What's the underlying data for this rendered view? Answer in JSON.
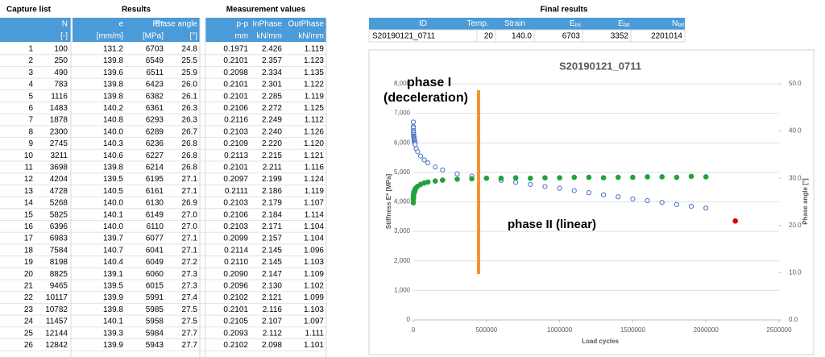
{
  "table": {
    "groups": [
      "Capture list",
      "Results",
      "Measurement values"
    ],
    "columns": [
      {
        "name": "N",
        "unit": "[-]"
      },
      {
        "name": "e",
        "unit": "[mm/m]"
      },
      {
        "name": "E*",
        "unit": "[MPa]"
      },
      {
        "name": "Phase angle",
        "unit": "[°]"
      },
      {
        "name": "p-p",
        "unit": "mm"
      },
      {
        "name": "InPhase",
        "unit": "kN/mm"
      },
      {
        "name": "OutPhase",
        "unit": "kN/mm"
      }
    ],
    "rows": [
      [
        "1",
        "100",
        "131.2",
        "6703",
        "24.8",
        "0.1971",
        "2.426",
        "1.119"
      ],
      [
        "2",
        "250",
        "139.8",
        "6549",
        "25.5",
        "0.2101",
        "2.357",
        "1.123"
      ],
      [
        "3",
        "490",
        "139.6",
        "6511",
        "25.9",
        "0.2098",
        "2.334",
        "1.135"
      ],
      [
        "4",
        "783",
        "139.8",
        "6423",
        "26.0",
        "0.2101",
        "2.301",
        "1.122"
      ],
      [
        "5",
        "1116",
        "139.8",
        "6382",
        "26.1",
        "0.2101",
        "2.285",
        "1.119"
      ],
      [
        "6",
        "1483",
        "140.2",
        "6361",
        "26.3",
        "0.2106",
        "2.272",
        "1.125"
      ],
      [
        "7",
        "1878",
        "140.8",
        "6293",
        "26.3",
        "0.2116",
        "2.249",
        "1.112"
      ],
      [
        "8",
        "2300",
        "140.0",
        "6289",
        "26.7",
        "0.2103",
        "2.240",
        "1.126"
      ],
      [
        "9",
        "2745",
        "140.3",
        "6236",
        "26.8",
        "0.2109",
        "2.220",
        "1.120"
      ],
      [
        "10",
        "3211",
        "140.6",
        "6227",
        "26.8",
        "0.2113",
        "2.215",
        "1.121"
      ],
      [
        "11",
        "3698",
        "139.8",
        "6214",
        "26.8",
        "0.2101",
        "2.211",
        "1.116"
      ],
      [
        "12",
        "4204",
        "139.5",
        "6195",
        "27.1",
        "0.2097",
        "2.199",
        "1.124"
      ],
      [
        "13",
        "4728",
        "140.5",
        "6161",
        "27.1",
        "0.2111",
        "2.186",
        "1.119"
      ],
      [
        "14",
        "5268",
        "140.0",
        "6130",
        "26.9",
        "0.2103",
        "2.179",
        "1.107"
      ],
      [
        "15",
        "5825",
        "140.1",
        "6149",
        "27.0",
        "0.2106",
        "2.184",
        "1.114"
      ],
      [
        "16",
        "6396",
        "140.0",
        "6110",
        "27.0",
        "0.2103",
        "2.171",
        "1.104"
      ],
      [
        "17",
        "6983",
        "139.7",
        "6077",
        "27.1",
        "0.2099",
        "2.157",
        "1.104"
      ],
      [
        "18",
        "7584",
        "140.7",
        "6041",
        "27.1",
        "0.2114",
        "2.145",
        "1.096"
      ],
      [
        "19",
        "8198",
        "140.4",
        "6049",
        "27.2",
        "0.2110",
        "2.145",
        "1.103"
      ],
      [
        "20",
        "8825",
        "139.1",
        "6060",
        "27.3",
        "0.2090",
        "2.147",
        "1.109"
      ],
      [
        "21",
        "9465",
        "139.5",
        "6015",
        "27.3",
        "0.2096",
        "2.130",
        "1.102"
      ],
      [
        "22",
        "10117",
        "139.9",
        "5991",
        "27.4",
        "0.2102",
        "2.121",
        "1.099"
      ],
      [
        "23",
        "10782",
        "139.8",
        "5985",
        "27.5",
        "0.2101",
        "2.116",
        "1.103"
      ],
      [
        "24",
        "11457",
        "140.1",
        "5958",
        "27.5",
        "0.2105",
        "2.107",
        "1.097"
      ],
      [
        "25",
        "12144",
        "139.3",
        "5984",
        "27.7",
        "0.2093",
        "2.112",
        "1.111"
      ],
      [
        "26",
        "12842",
        "139.9",
        "5943",
        "27.7",
        "0.2102",
        "2.098",
        "1.101"
      ]
    ]
  },
  "final_results": {
    "title": "Final results",
    "headers": [
      {
        "text": "ID"
      },
      {
        "text": "Temp."
      },
      {
        "text": "Strain"
      },
      {
        "text": "E",
        "sub": "ini"
      },
      {
        "text": "E",
        "sub": "fat"
      },
      {
        "text": "N",
        "sub": "fat"
      }
    ],
    "values": [
      "S20190121_0711",
      "20",
      "140.0",
      "6703",
      "3352",
      "2201014"
    ]
  },
  "chart_data": {
    "type": "scatter",
    "title": "S20190121_0711",
    "xlabel": "Load cycles",
    "ylabel": "Stiffness E* [MPa]",
    "y2label": "Phase angle [°]",
    "annotations": [
      "phase I",
      "(deceleration)",
      "phase II (linear)"
    ],
    "xlim": [
      0,
      2500000
    ],
    "xticks": [
      0,
      500000,
      1000000,
      1500000,
      2000000,
      2500000
    ],
    "ylim": [
      0,
      8000
    ],
    "yticks": [
      0,
      {
        "value": 1000,
        "label": "1,000"
      },
      {
        "value": 2000,
        "label": "2,000"
      },
      {
        "value": 3000,
        "label": "3,000"
      },
      {
        "value": 4000,
        "label": "4,000"
      },
      {
        "value": 5000,
        "label": "5,000"
      },
      {
        "value": 6000,
        "label": "6,000"
      },
      {
        "value": 7000,
        "label": "7,000"
      },
      {
        "value": 8000,
        "label": "8,000"
      }
    ],
    "y2lim": [
      0,
      50
    ],
    "y2ticks": [
      {
        "value": 0,
        "label": "0.0"
      },
      {
        "value": 10,
        "label": "10.0"
      },
      {
        "value": 20,
        "label": "20.0"
      },
      {
        "value": 30,
        "label": "30.0"
      },
      {
        "value": 40,
        "label": "40.0"
      },
      {
        "value": 50,
        "label": "50.0"
      }
    ],
    "grid": true,
    "series": [
      {
        "color": "#4472c4",
        "marker": "open",
        "axis": "y",
        "x": [
          100,
          250,
          490,
          783,
          1116,
          1483,
          1878,
          2300,
          2745,
          3211,
          3698,
          4204,
          4728,
          5268,
          5825,
          6396,
          6983,
          7584,
          8198,
          8825,
          9465,
          10117,
          10782,
          11457,
          12144,
          12842,
          20000,
          30000,
          50000,
          75000,
          100000,
          150000,
          200000,
          300000,
          400000,
          500000,
          600000,
          700000,
          800000,
          900000,
          1000000,
          1100000,
          1200000,
          1300000,
          1400000,
          1500000,
          1600000,
          1700000,
          1800000,
          1900000,
          2000000
        ],
        "values": [
          6703,
          6549,
          6511,
          6423,
          6382,
          6361,
          6293,
          6289,
          6236,
          6227,
          6214,
          6195,
          6161,
          6130,
          6149,
          6110,
          6077,
          6041,
          6049,
          6060,
          6015,
          5991,
          5985,
          5958,
          5984,
          5943,
          5800,
          5700,
          5550,
          5420,
          5320,
          5180,
          5080,
          4950,
          4870,
          4800,
          4730,
          4660,
          4590,
          4520,
          4460,
          4380,
          4310,
          4240,
          4170,
          4100,
          4040,
          3980,
          3910,
          3850,
          3790
        ]
      },
      {
        "color": "#22a33a",
        "marker": "filled",
        "axis": "y2",
        "x": [
          100,
          250,
          490,
          783,
          1116,
          1483,
          1878,
          2300,
          2745,
          3211,
          3698,
          4204,
          4728,
          5268,
          5825,
          6396,
          6983,
          7584,
          8198,
          8825,
          9465,
          10117,
          10782,
          11457,
          12144,
          12842,
          20000,
          30000,
          50000,
          75000,
          100000,
          150000,
          200000,
          300000,
          400000,
          500000,
          600000,
          700000,
          800000,
          900000,
          1000000,
          1100000,
          1200000,
          1300000,
          1400000,
          1500000,
          1600000,
          1700000,
          1800000,
          1900000,
          2000000
        ],
        "values": [
          24.8,
          25.5,
          25.9,
          26.0,
          26.1,
          26.3,
          26.3,
          26.7,
          26.8,
          26.8,
          26.8,
          27.1,
          27.1,
          26.9,
          27.0,
          27.0,
          27.1,
          27.1,
          27.2,
          27.3,
          27.3,
          27.4,
          27.5,
          27.5,
          27.7,
          27.7,
          28.0,
          28.3,
          28.7,
          29.0,
          29.2,
          29.4,
          29.6,
          29.8,
          29.9,
          30.0,
          30.0,
          30.1,
          30.0,
          30.1,
          30.1,
          30.2,
          30.2,
          30.1,
          30.2,
          30.2,
          30.3,
          30.3,
          30.2,
          30.4,
          30.3
        ]
      },
      {
        "color": "#e00000",
        "marker": "filled",
        "axis": "y",
        "x": [
          2201014
        ],
        "values": [
          3352
        ]
      }
    ]
  }
}
